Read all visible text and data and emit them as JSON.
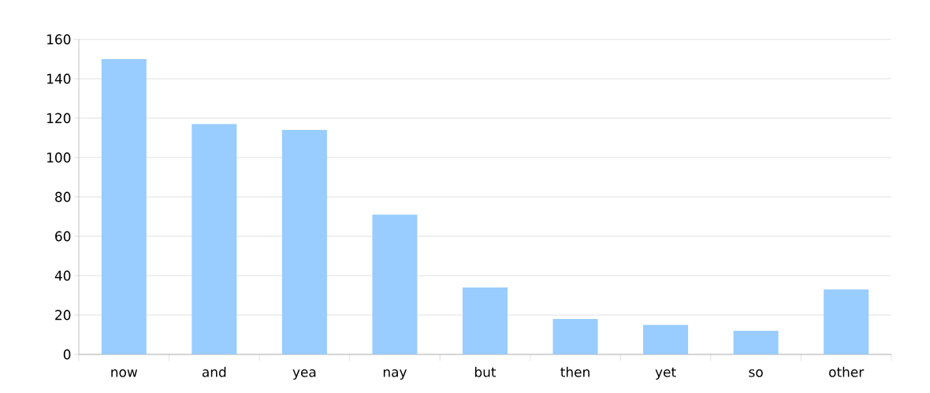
{
  "chart_data": {
    "type": "bar",
    "categories": [
      "now",
      "and",
      "yea",
      "nay",
      "but",
      "then",
      "yet",
      "so",
      "other"
    ],
    "values": [
      150,
      117,
      114,
      71,
      34,
      18,
      15,
      12,
      33
    ],
    "color": "#99ccff",
    "ylim": [
      0,
      160
    ],
    "yticks": [
      0,
      20,
      40,
      60,
      80,
      100,
      120,
      140,
      160
    ],
    "grid": "y"
  }
}
